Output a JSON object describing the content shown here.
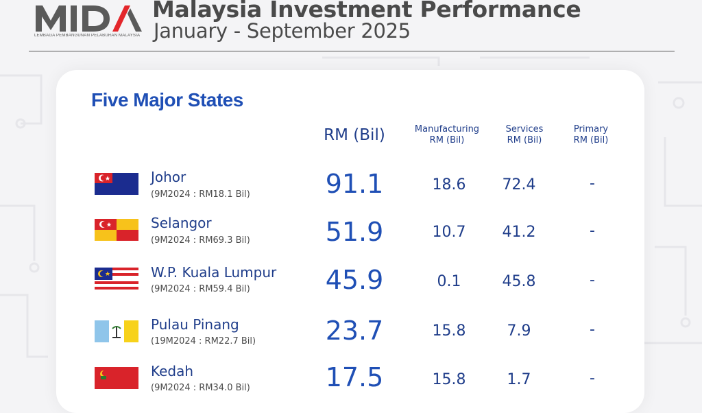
{
  "header": {
    "logo_text": "MIDA",
    "logo_subtitle": "LEMBAGA PEMBANGUNAN PELABURAN MALAYSIA",
    "title": "Malaysia Investment Performance",
    "subtitle": "January - September 2025"
  },
  "section_title": "Five Major States",
  "columns": {
    "total": "RM (Bil)",
    "manufacturing": [
      "Manufacturing",
      "RM (Bil)"
    ],
    "services": [
      "Services",
      "RM (Bil)"
    ],
    "primary": [
      "Primary",
      "RM (Bil)"
    ]
  },
  "colors": {
    "title_gray": "#4a4a4a",
    "primary_blue": "#1f4fb5",
    "navy": "#1f3d8a",
    "logo_red": "#e3262b"
  },
  "rows": [
    {
      "state": "Johor",
      "prev": "(9M2024 : RM18.1 Bil)",
      "total": "91.1",
      "manufacturing": "18.6",
      "services": "72.4",
      "primary": "-",
      "flag_icon": "johor-flag-icon"
    },
    {
      "state": "Selangor",
      "prev": "(9M2024 : RM69.3 Bil)",
      "total": "51.9",
      "manufacturing": "10.7",
      "services": "41.2",
      "primary": "-",
      "flag_icon": "selangor-flag-icon"
    },
    {
      "state": "W.P. Kuala Lumpur",
      "prev": "(9M2024 : RM59.4 Bil)",
      "total": "45.9",
      "manufacturing": "0.1",
      "services": "45.8",
      "primary": "-",
      "flag_icon": "kuala-lumpur-flag-icon"
    },
    {
      "state": "Pulau Pinang",
      "prev": "(19M2024 : RM22.7 Bil)",
      "total": "23.7",
      "manufacturing": "15.8",
      "services": "7.9",
      "primary": "-",
      "flag_icon": "penang-flag-icon"
    },
    {
      "state": "Kedah",
      "prev": "(9M2024 : RM34.0 Bil)",
      "total": "17.5",
      "manufacturing": "15.8",
      "services": "1.7",
      "primary": "-",
      "flag_icon": "kedah-flag-icon"
    }
  ]
}
